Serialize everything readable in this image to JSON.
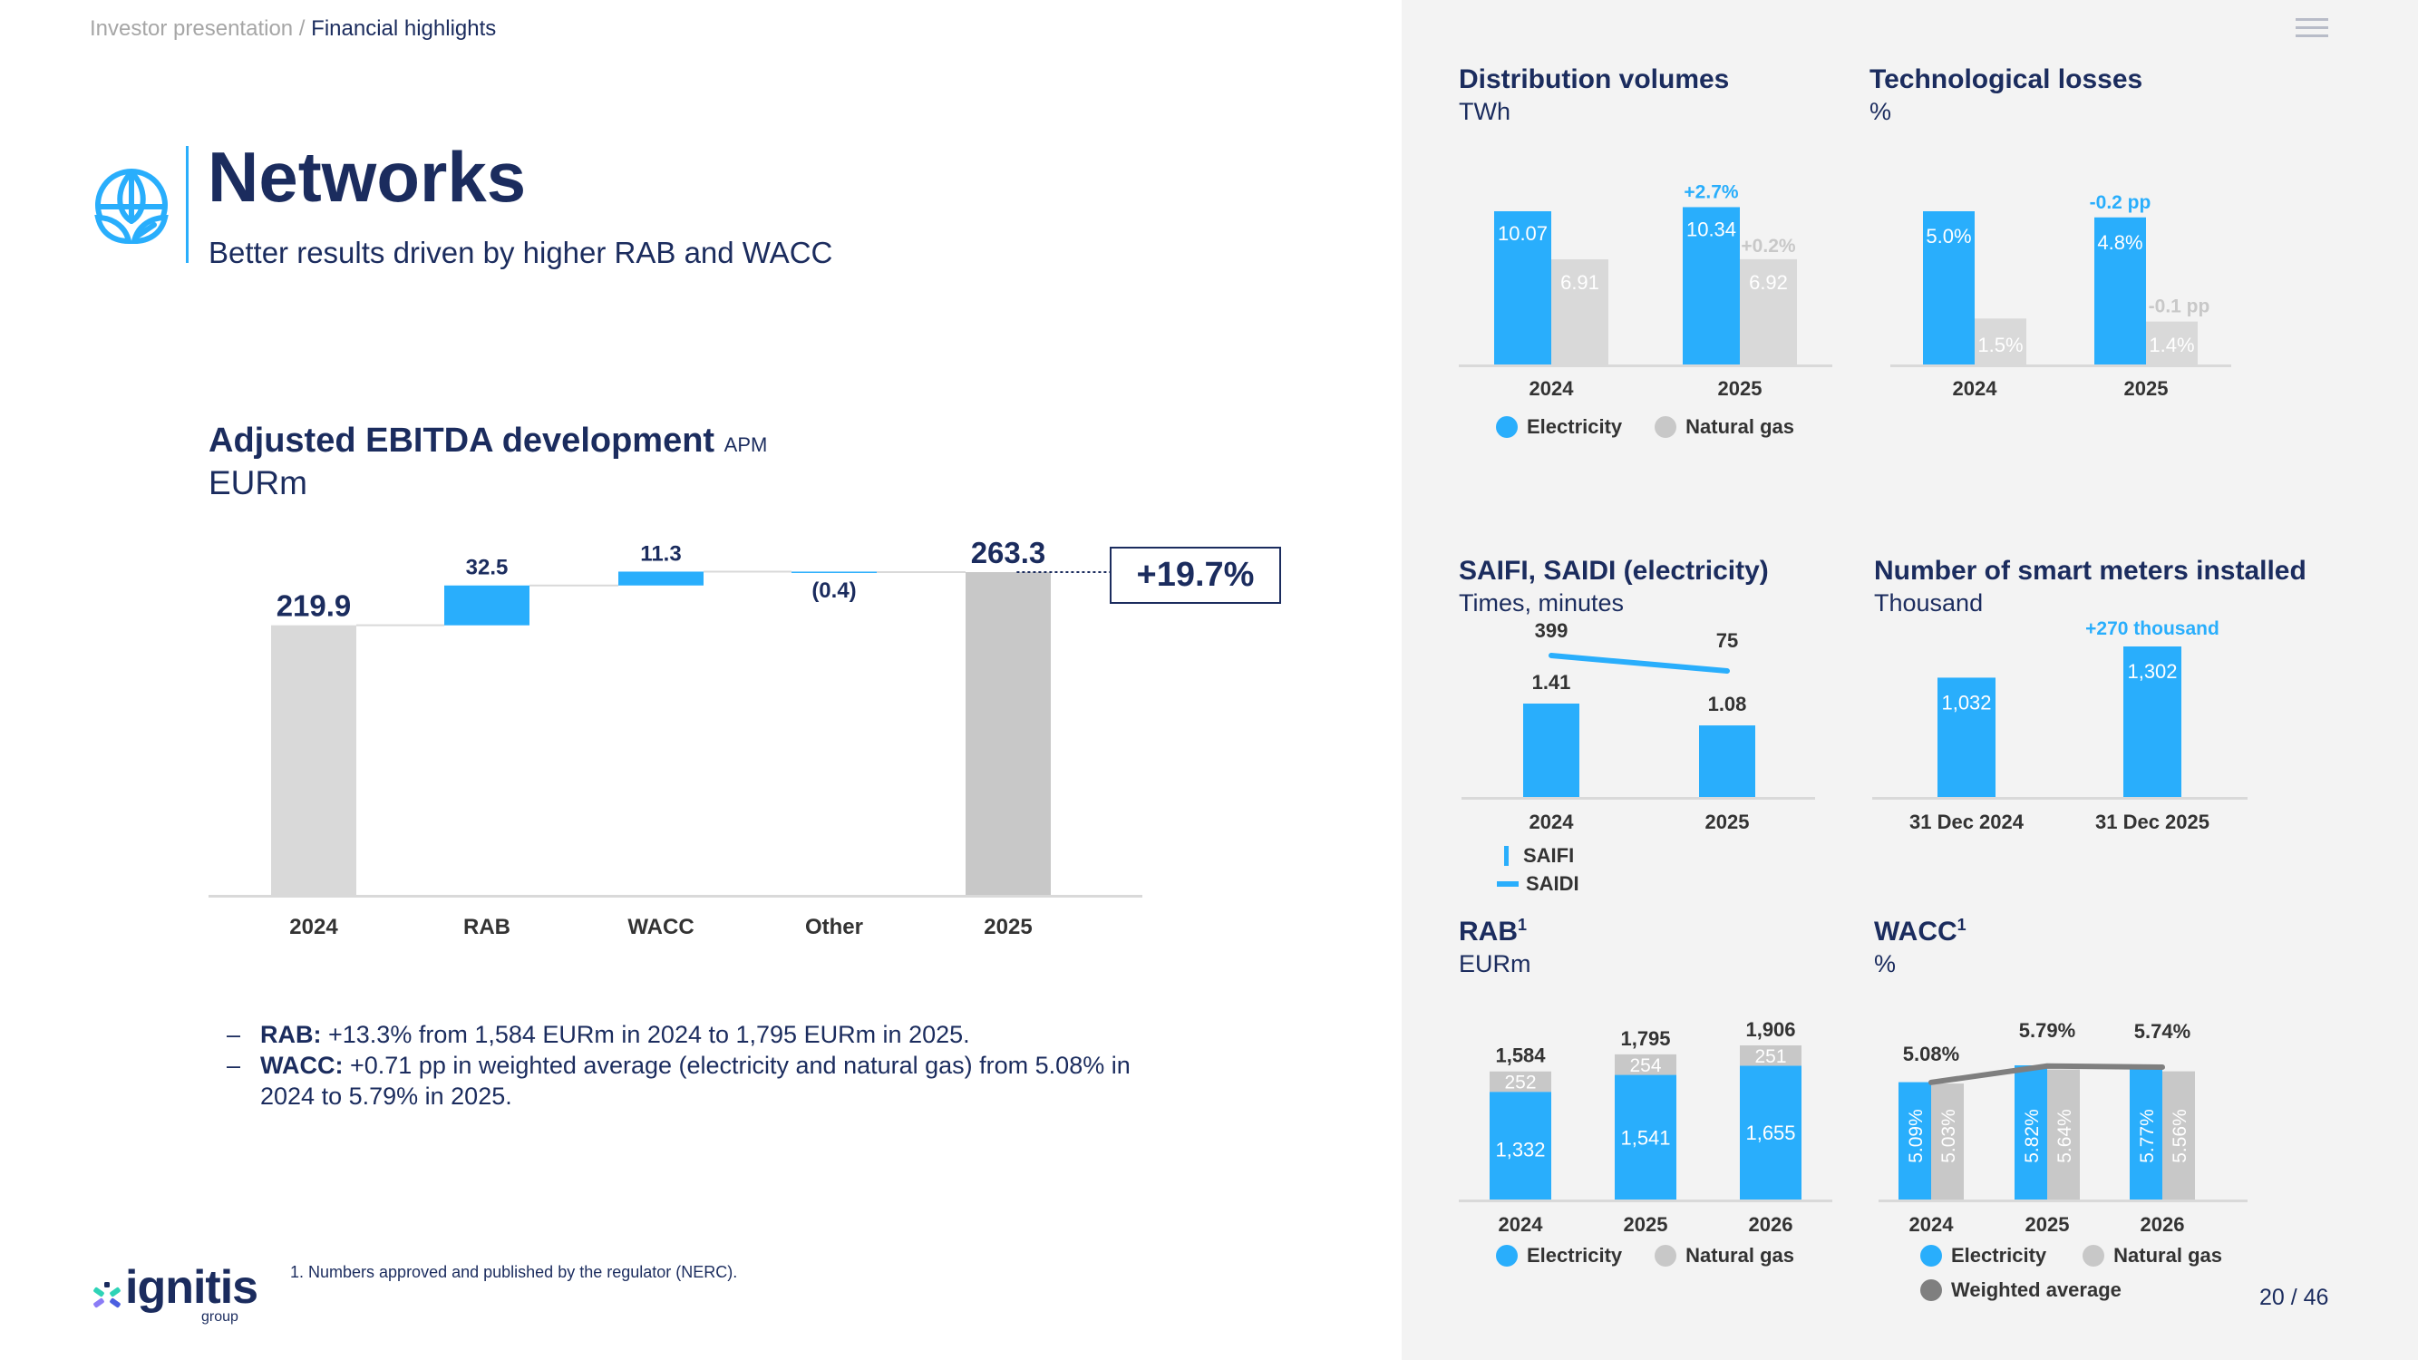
{
  "breadcrumb": {
    "parent": "Investor presentation",
    "separator": " / ",
    "current": "Financial highlights"
  },
  "header": {
    "title": "Networks",
    "subtitle": "Better results driven by higher RAB and WACC",
    "icon": "globe-leaf-icon",
    "menu_icon": "hamburger-menu-icon"
  },
  "colors": {
    "navy": "#1b2c5e",
    "blue": "#29aefc",
    "light_gray": "#d9d9d9",
    "mid_gray": "#c8c8c8",
    "dark_gray": "#7f7f7f",
    "panel_bg": "#f3f3f3"
  },
  "ebitda": {
    "title": "Adjusted EBITDA development",
    "tag": "APM",
    "unit": "EURm",
    "change_label": "+19.7%"
  },
  "bullets": [
    {
      "label": "RAB:",
      "text": " +13.3% from 1,584 EURm in 2024 to 1,795 EURm in 2025."
    },
    {
      "label": "WACC:",
      "text": " +0.71 pp in weighted average (electricity and natural gas) from 5.08% in 2024 to 5.79% in 2025."
    }
  ],
  "footnote": "1. Numbers approved and published by the regulator (NERC).",
  "logo": {
    "word": "ignitis",
    "sub": "group"
  },
  "page_number": "20 / 46",
  "panels": {
    "distribution": {
      "title": "Distribution volumes",
      "unit": "TWh"
    },
    "losses": {
      "title": "Technological losses",
      "unit": "%"
    },
    "saifi": {
      "title": "SAIFI, SAIDI (electricity)",
      "unit": "Times, minutes"
    },
    "meters": {
      "title": "Number of smart meters installed",
      "unit": "Thousand"
    },
    "rab": {
      "title": "RAB",
      "sup": "1",
      "unit": "EURm"
    },
    "wacc": {
      "title": "WACC",
      "sup": "1",
      "unit": "%"
    }
  },
  "legends": {
    "electricity": "Electricity",
    "natural_gas": "Natural gas",
    "weighted_average": "Weighted average",
    "saifi": "SAIFI",
    "saidi": "SAIDI"
  },
  "chart_data": [
    {
      "id": "ebitda",
      "type": "bar",
      "subtype": "waterfall",
      "title": "Adjusted EBITDA development",
      "ylabel": "EURm",
      "categories": [
        "2024",
        "RAB",
        "WACC",
        "Other",
        "2025"
      ],
      "values": [
        219.9,
        32.5,
        11.3,
        -0.4,
        263.3
      ],
      "labels": [
        "219.9",
        "32.5",
        "11.3",
        "(0.4)",
        "263.3"
      ],
      "kinds": [
        "total",
        "delta",
        "delta",
        "delta",
        "total"
      ],
      "annotation": "+19.7%",
      "ylim": [
        0,
        270
      ]
    },
    {
      "id": "distribution",
      "type": "bar",
      "title": "Distribution volumes",
      "ylabel": "TWh",
      "categories": [
        "2024",
        "2025"
      ],
      "series": [
        {
          "name": "Electricity",
          "values": [
            10.07,
            10.34
          ],
          "labels": [
            "10.07",
            "10.34"
          ],
          "change": "+2.7%"
        },
        {
          "name": "Natural gas",
          "values": [
            6.91,
            6.92
          ],
          "labels": [
            "6.91",
            "6.92"
          ],
          "change": "+0.2%"
        }
      ],
      "ylim": [
        0,
        10.5
      ]
    },
    {
      "id": "losses",
      "type": "bar",
      "title": "Technological losses",
      "ylabel": "%",
      "categories": [
        "2024",
        "2025"
      ],
      "series": [
        {
          "name": "Electricity",
          "values": [
            5.0,
            4.8
          ],
          "labels": [
            "5.0%",
            "4.8%"
          ],
          "change": "-0.2 pp"
        },
        {
          "name": "Natural gas",
          "values": [
            1.5,
            1.4
          ],
          "labels": [
            "1.5%",
            "1.4%"
          ],
          "change": "-0.1 pp"
        }
      ],
      "ylim": [
        0,
        5.2
      ]
    },
    {
      "id": "saifi",
      "type": "bar",
      "title": "SAIFI, SAIDI (electricity)",
      "ylabel": "Times, minutes",
      "categories": [
        "2024",
        "2025"
      ],
      "series": [
        {
          "name": "SAIFI",
          "kind": "bar",
          "values": [
            1.41,
            1.08
          ],
          "labels": [
            "1.41",
            "1.08"
          ]
        },
        {
          "name": "SAIDI",
          "kind": "line",
          "values": [
            399,
            75
          ],
          "labels": [
            "399",
            "75"
          ]
        }
      ]
    },
    {
      "id": "meters",
      "type": "bar",
      "title": "Number of smart meters installed",
      "ylabel": "Thousand",
      "categories": [
        "31 Dec 2024",
        "31 Dec 2025"
      ],
      "values": [
        1032,
        1302
      ],
      "labels": [
        "1,032",
        "1,302"
      ],
      "change": "+270 thousand",
      "ylim": [
        0,
        1350
      ]
    },
    {
      "id": "rab",
      "type": "bar",
      "subtype": "stacked",
      "title": "RAB",
      "ylabel": "EURm",
      "categories": [
        "2024",
        "2025",
        "2026"
      ],
      "series": [
        {
          "name": "Electricity",
          "values": [
            1332,
            1541,
            1655
          ],
          "labels": [
            "1,332",
            "1,541",
            "1,655"
          ]
        },
        {
          "name": "Natural gas",
          "values": [
            252,
            254,
            251
          ],
          "labels": [
            "252",
            "254",
            "251"
          ]
        }
      ],
      "totals": [
        "1,584",
        "1,795",
        "1,906"
      ],
      "ylim": [
        0,
        1950
      ]
    },
    {
      "id": "wacc",
      "type": "bar",
      "title": "WACC",
      "ylabel": "%",
      "categories": [
        "2024",
        "2025",
        "2026"
      ],
      "series": [
        {
          "name": "Electricity",
          "kind": "bar",
          "values": [
            5.09,
            5.82,
            5.77
          ],
          "labels": [
            "5.09%",
            "5.82%",
            "5.77%"
          ]
        },
        {
          "name": "Natural gas",
          "kind": "bar",
          "values": [
            5.03,
            5.64,
            5.56
          ],
          "labels": [
            "5.03%",
            "5.64%",
            "5.56%"
          ]
        },
        {
          "name": "Weighted average",
          "kind": "line",
          "values": [
            5.08,
            5.79,
            5.74
          ],
          "labels": [
            "5.08%",
            "5.79%",
            "5.74%"
          ]
        }
      ]
    }
  ]
}
